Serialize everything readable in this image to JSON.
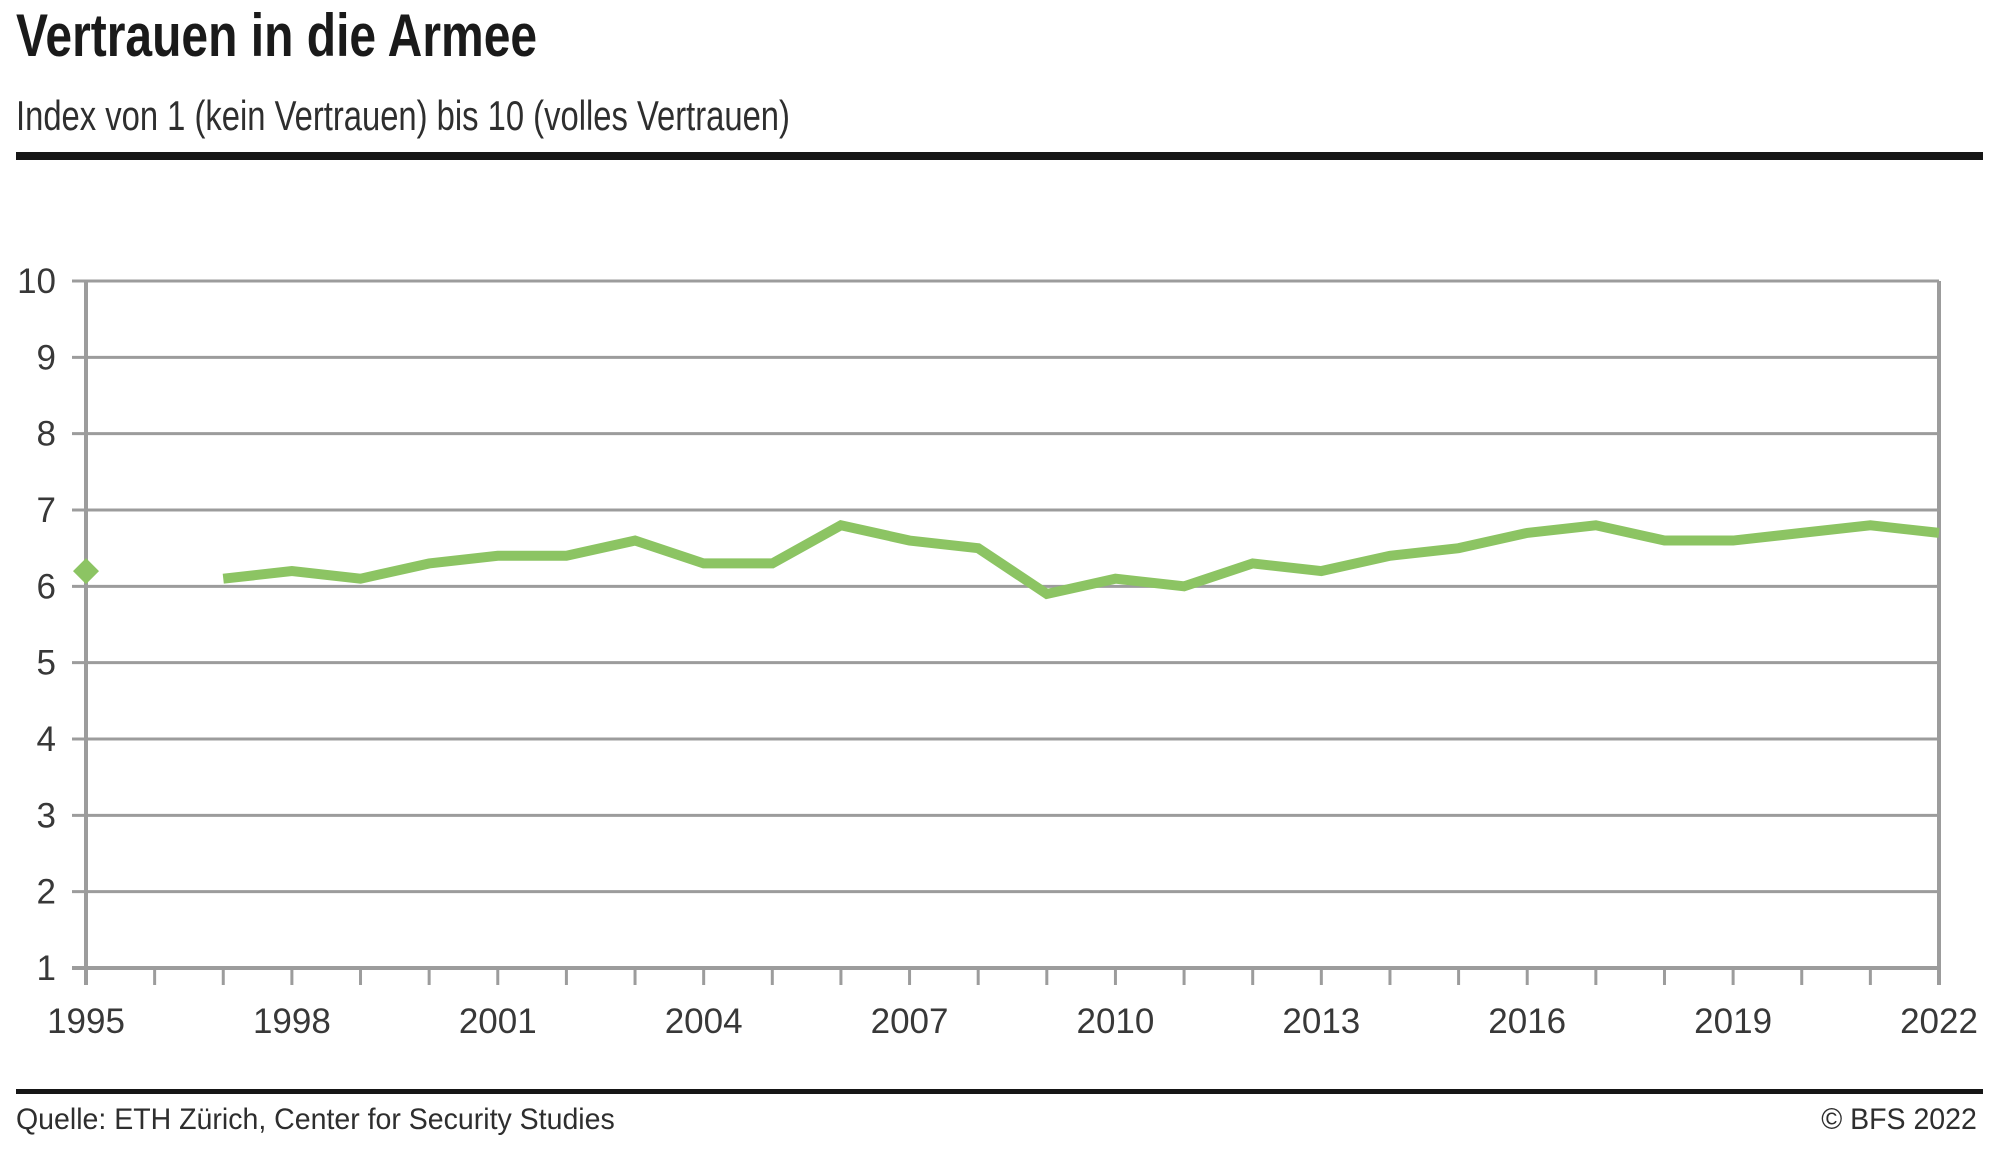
{
  "header": {
    "title": "Vertrauen in die Armee",
    "subtitle": "Index von 1 (kein Vertrauen) bis 10 (volles Vertrauen)"
  },
  "footer": {
    "source": "Quelle: ETH Zürich, Center for Security Studies",
    "copyright": "© BFS 2022"
  },
  "colors": {
    "line_green": "#8CC463",
    "grid_gray": "#9c9c9c",
    "rule_black": "#161616"
  },
  "chart_data": {
    "type": "line",
    "title": "Vertrauen in die Armee",
    "subtitle": "Index von 1 (kein Vertrauen) bis 10 (volles Vertrauen)",
    "xlabel": "",
    "ylabel": "",
    "ylim": [
      1,
      10
    ],
    "yticks": [
      1,
      2,
      3,
      4,
      5,
      6,
      7,
      8,
      9,
      10
    ],
    "xlim": [
      1995,
      2022
    ],
    "xtick_step_years": 1,
    "xtick_labels": [
      "1995",
      "1998",
      "2001",
      "2004",
      "2007",
      "2010",
      "2013",
      "2016",
      "2019",
      "2022"
    ],
    "grid": "horizontal",
    "legend": "none",
    "line_color": "#8CC463",
    "isolated_point": {
      "x": 1995,
      "y": 6.2,
      "marker": "diamond"
    },
    "series": [
      {
        "name": "Vertrauen in die Armee",
        "x": [
          1997,
          1998,
          1999,
          2000,
          2001,
          2002,
          2003,
          2004,
          2005,
          2006,
          2007,
          2008,
          2009,
          2010,
          2011,
          2012,
          2013,
          2014,
          2015,
          2016,
          2017,
          2018,
          2019,
          2020,
          2021,
          2022
        ],
        "values": [
          6.1,
          6.2,
          6.1,
          6.3,
          6.4,
          6.4,
          6.6,
          6.3,
          6.3,
          6.8,
          6.6,
          6.5,
          5.9,
          6.1,
          6.0,
          6.3,
          6.2,
          6.4,
          6.5,
          6.7,
          6.8,
          6.6,
          6.6,
          6.7,
          6.8,
          6.7
        ]
      }
    ]
  }
}
